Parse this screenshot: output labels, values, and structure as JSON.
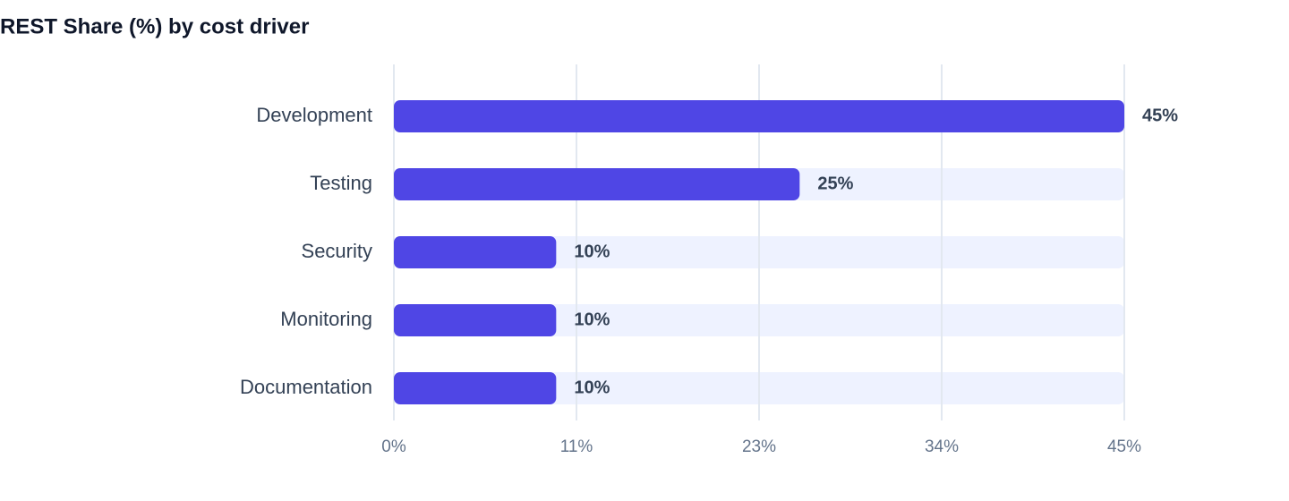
{
  "chart_data": {
    "type": "bar",
    "orientation": "horizontal",
    "title": "REST Share (%) by cost driver",
    "categories": [
      "Development",
      "Testing",
      "Security",
      "Monitoring",
      "Documentation"
    ],
    "values": [
      45,
      25,
      10,
      10,
      10
    ],
    "value_labels": [
      "45%",
      "25%",
      "10%",
      "10%",
      "10%"
    ],
    "color": "#4f46e5",
    "xlim": [
      0,
      45
    ],
    "xticks": [
      {
        "value": 0,
        "label": "0%"
      },
      {
        "value": 11.25,
        "label": "11%"
      },
      {
        "value": 22.5,
        "label": "23%"
      },
      {
        "value": 33.75,
        "label": "34%"
      },
      {
        "value": 45,
        "label": "45%"
      }
    ],
    "grid": true
  }
}
